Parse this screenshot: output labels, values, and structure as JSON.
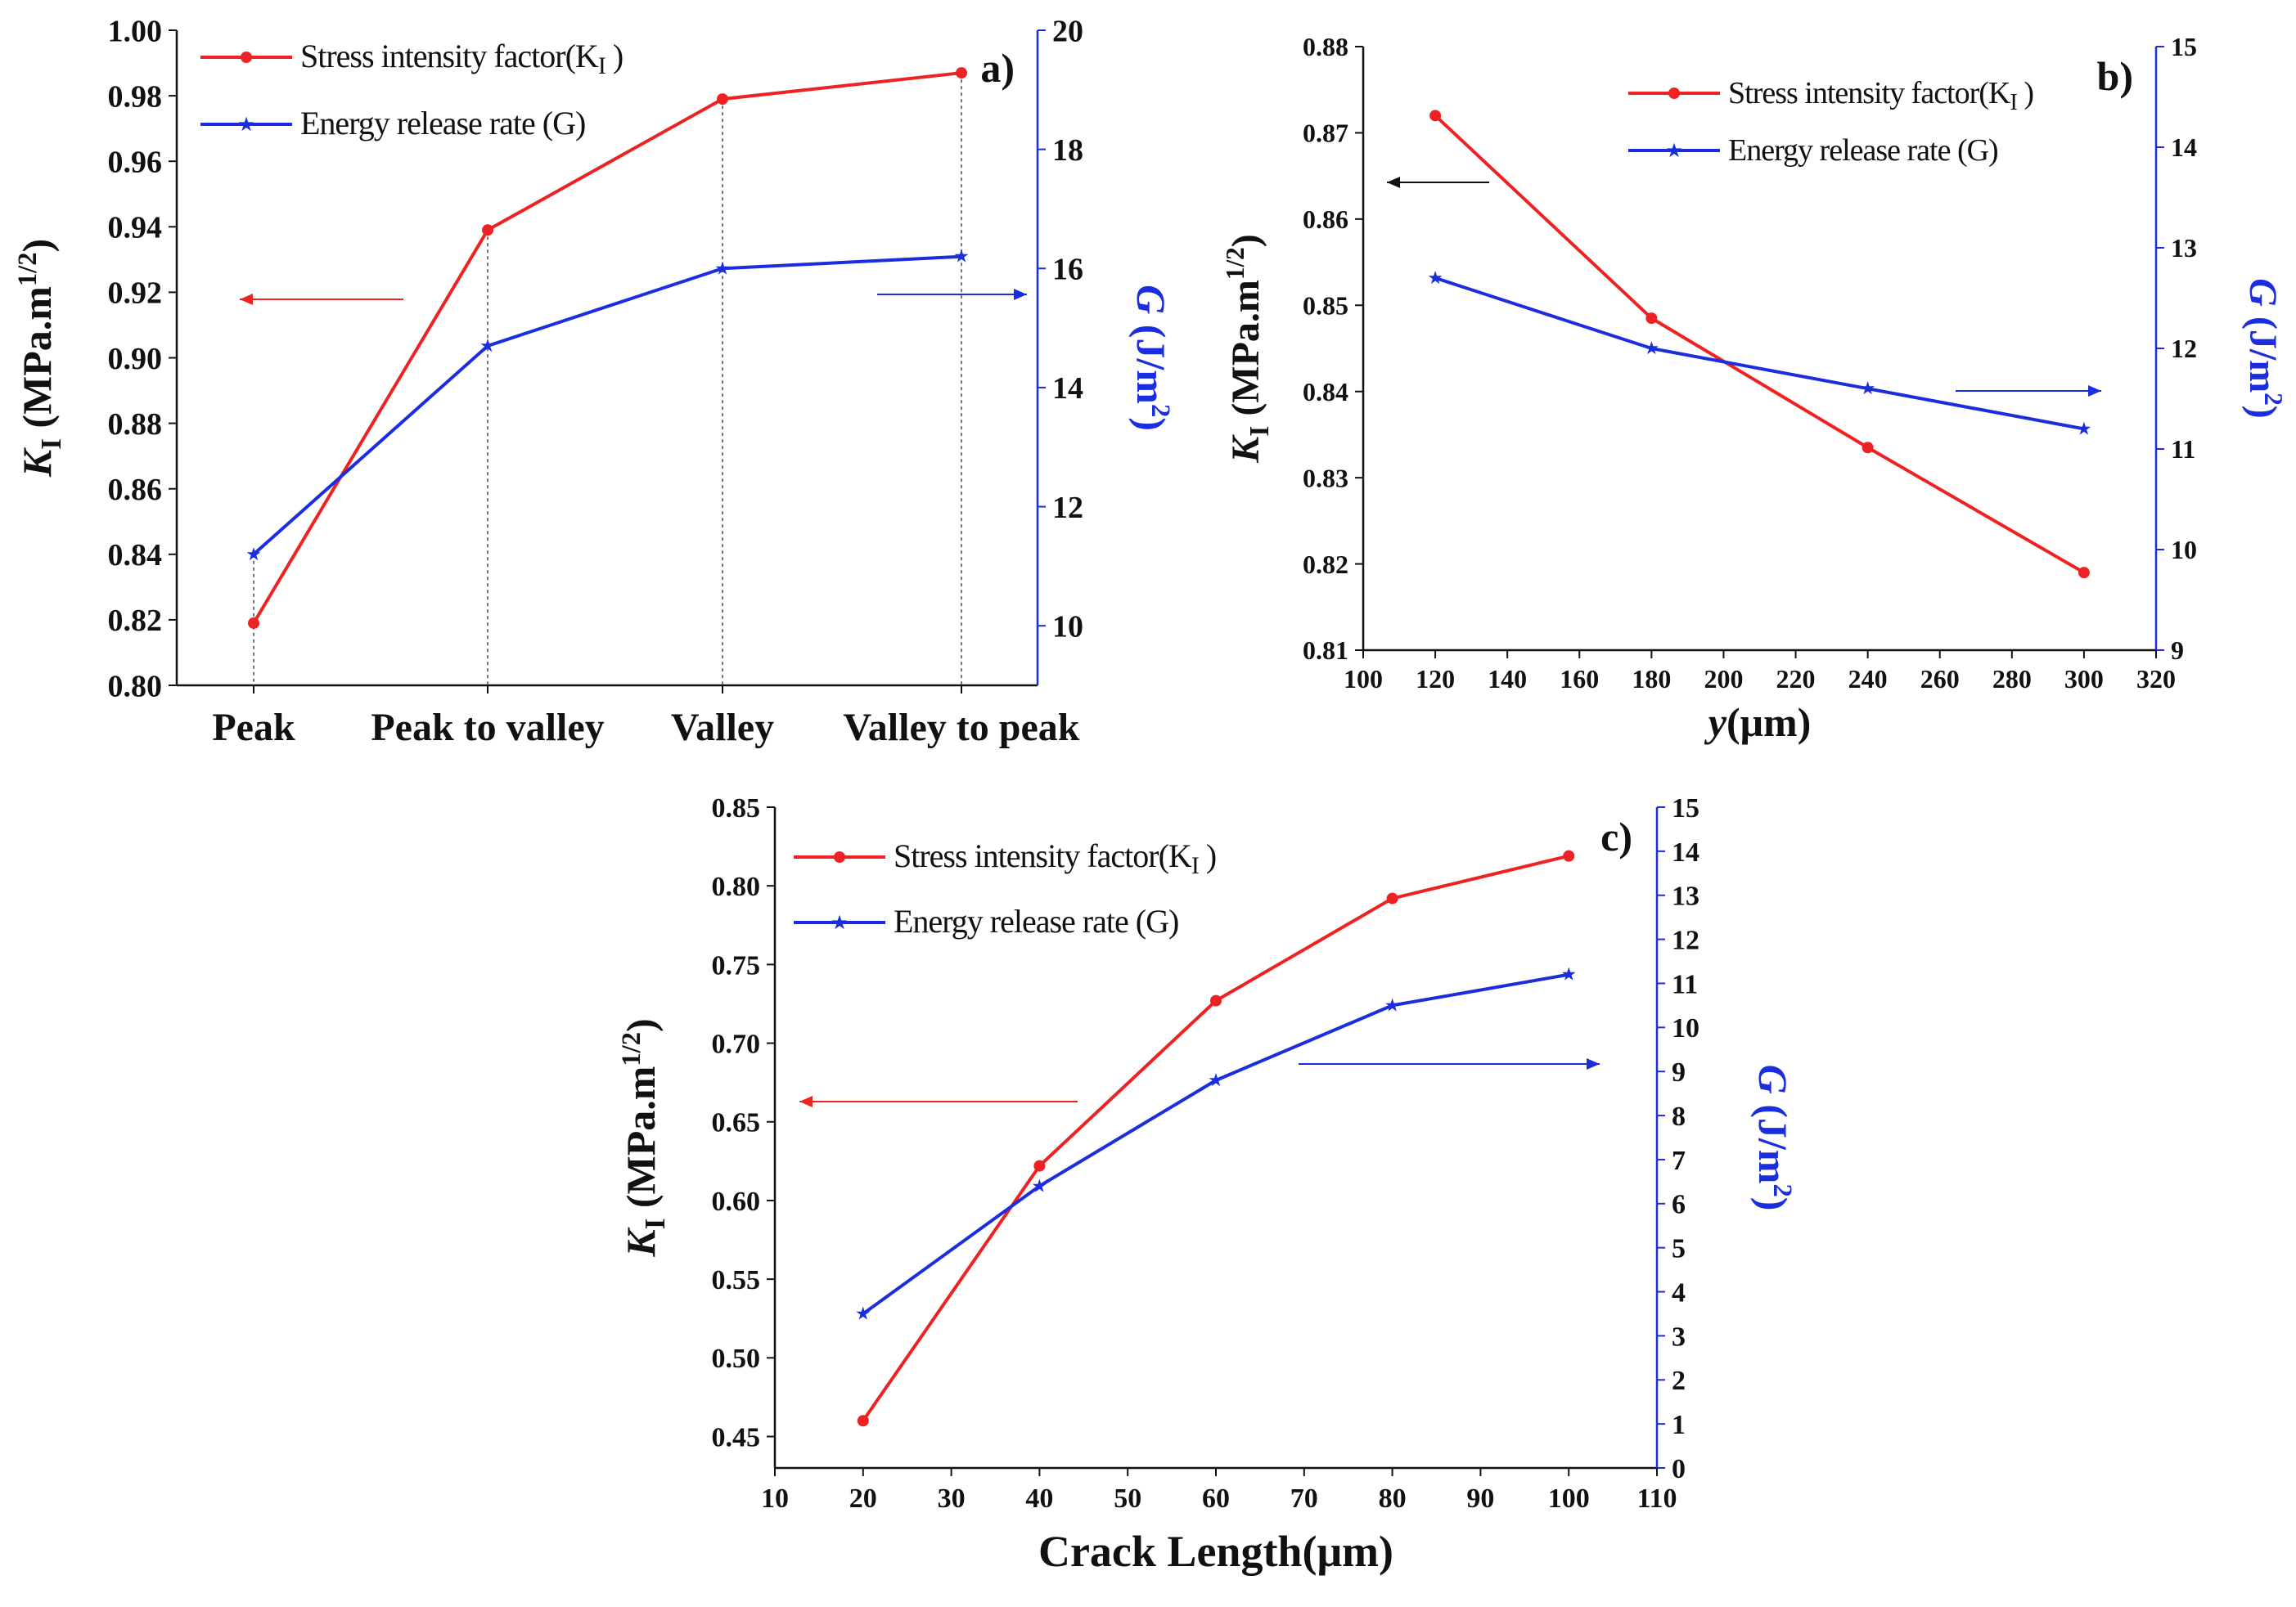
{
  "colors": {
    "k": "#ee2222",
    "g": "#1a2ee0",
    "axis_g": "#1a2ee0",
    "axis": "#111111",
    "guide": "#777777"
  },
  "chart_data": [
    {
      "id": "a",
      "type": "line",
      "panel_label": "a)",
      "categories": [
        "Peak",
        "Peak to valley",
        "Valley",
        "Valley to peak"
      ],
      "xlabel": "",
      "ylabel_left": {
        "symbol": "K",
        "sub": "I",
        "unit": "(MPa.m",
        "sup": "1/2",
        "close": ")"
      },
      "ylabel_right": {
        "symbol": "G",
        "unit": "(J/m",
        "sup": "2",
        "close": ")"
      },
      "ylim_left": [
        0.8,
        1.0
      ],
      "yticks_left": [
        "0.80",
        "0.82",
        "0.84",
        "0.86",
        "0.88",
        "0.90",
        "0.92",
        "0.94",
        "0.96",
        "0.98",
        "1.00"
      ],
      "ylim_right": [
        9.0,
        20.0
      ],
      "yticks_right": [
        "10",
        "12",
        "14",
        "16",
        "18",
        "20"
      ],
      "legend": {
        "k": "Stress intensity factor(K",
        "k_sub": "I",
        "k_close": ")",
        "g": "Energy release rate (G)"
      },
      "series": [
        {
          "name": "Stress intensity factor (KI)",
          "axis": "left",
          "values": [
            0.819,
            0.939,
            0.979,
            0.987
          ]
        },
        {
          "name": "Energy release rate (G)",
          "axis": "right",
          "values": [
            11.2,
            14.7,
            16.0,
            16.2
          ]
        }
      ]
    },
    {
      "id": "b",
      "type": "line",
      "panel_label": "b)",
      "x": [
        120,
        180,
        240,
        300
      ],
      "xlim": [
        100,
        320
      ],
      "xticks": [
        "100",
        "120",
        "140",
        "160",
        "180",
        "200",
        "220",
        "240",
        "260",
        "280",
        "300",
        "320"
      ],
      "xlabel": {
        "symbol": "y",
        "unit": "(μm)"
      },
      "ylabel_left": {
        "symbol": "K",
        "sub": "I",
        "unit": "(MPa.m",
        "sup": "1/2",
        "close": ")"
      },
      "ylabel_right": {
        "symbol": "G",
        "unit": "(J/m",
        "sup": "2",
        "close": ")"
      },
      "ylim_left": [
        0.81,
        0.88
      ],
      "yticks_left": [
        "0.81",
        "0.82",
        "0.83",
        "0.84",
        "0.85",
        "0.86",
        "0.87",
        "0.88"
      ],
      "ylim_right": [
        9,
        15
      ],
      "yticks_right": [
        "9",
        "10",
        "11",
        "12",
        "13",
        "14",
        "15"
      ],
      "legend": {
        "k": "Stress intensity factor(K",
        "k_sub": "I",
        "k_close": ")",
        "g": "Energy release rate (G)"
      },
      "series": [
        {
          "name": "Stress intensity factor (KI)",
          "axis": "left",
          "values": [
            0.872,
            0.8485,
            0.8335,
            0.819
          ]
        },
        {
          "name": "Energy release rate (G)",
          "axis": "right",
          "values": [
            12.7,
            12.0,
            11.6,
            11.2
          ]
        }
      ]
    },
    {
      "id": "c",
      "type": "line",
      "panel_label": "c)",
      "x": [
        20,
        40,
        60,
        80,
        100
      ],
      "xlim": [
        10,
        110
      ],
      "xticks": [
        "10",
        "20",
        "30",
        "40",
        "50",
        "60",
        "70",
        "80",
        "90",
        "100",
        "110"
      ],
      "xlabel": {
        "text": "Crack Length(μm)"
      },
      "ylabel_left": {
        "symbol": "K",
        "sub": "I",
        "unit": "(MPa.m",
        "sup": "1/2",
        "close": ")"
      },
      "ylabel_right": {
        "symbol": "G",
        "unit": "(J/m",
        "sup": "2",
        "close": ")"
      },
      "ylim_left": [
        0.43,
        0.85
      ],
      "yticks_left": [
        "0.45",
        "0.50",
        "0.55",
        "0.60",
        "0.65",
        "0.70",
        "0.75",
        "0.80",
        "0.85"
      ],
      "ylim_right": [
        0,
        15
      ],
      "yticks_right": [
        "0",
        "1",
        "2",
        "3",
        "4",
        "5",
        "6",
        "7",
        "8",
        "9",
        "10",
        "11",
        "12",
        "13",
        "14",
        "15"
      ],
      "legend": {
        "k": "Stress intensity factor(K",
        "k_sub": "I",
        "k_close": ")",
        "g": "Energy release rate (G)"
      },
      "series": [
        {
          "name": "Stress intensity factor (KI)",
          "axis": "left",
          "values": [
            0.46,
            0.622,
            0.727,
            0.792,
            0.819
          ]
        },
        {
          "name": "Energy release rate (G)",
          "axis": "right",
          "values": [
            3.5,
            6.4,
            8.8,
            10.5,
            11.2
          ]
        }
      ]
    }
  ]
}
